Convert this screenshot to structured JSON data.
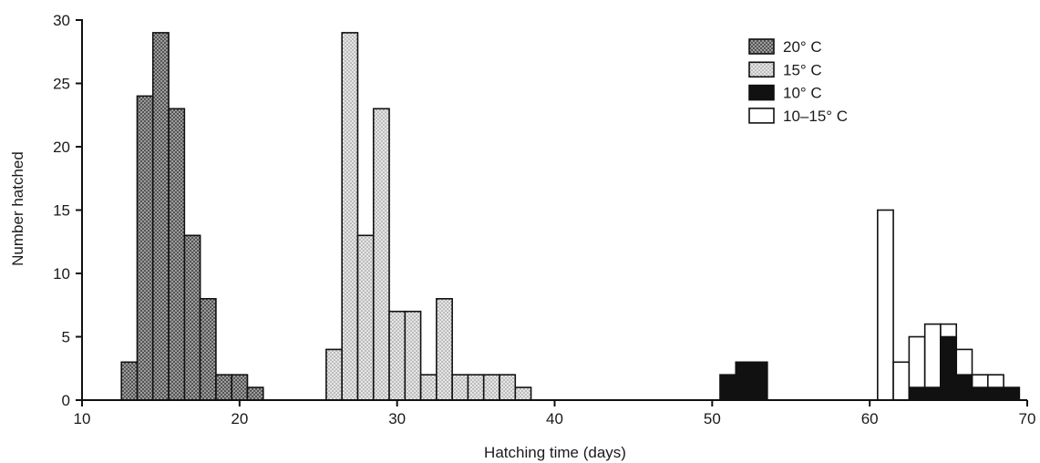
{
  "chart_data": {
    "type": "bar",
    "title": "",
    "xlabel": "Hatching time (days)",
    "ylabel": "Number hatched",
    "xlim": [
      10,
      70
    ],
    "ylim": [
      0,
      30
    ],
    "x_ticks": [
      "10",
      "20",
      "30",
      "40",
      "50",
      "60",
      "70"
    ],
    "y_ticks": [
      "0",
      "5",
      "10",
      "15",
      "20",
      "25",
      "30"
    ],
    "grid": false,
    "legend_position": "top-right",
    "series": [
      {
        "name": "20° C",
        "pattern": "dark-dotted",
        "x": [
          13,
          14,
          15,
          16,
          17,
          18,
          19,
          20,
          21
        ],
        "values": [
          3,
          24,
          29,
          23,
          13,
          8,
          2,
          2,
          1
        ]
      },
      {
        "name": "15° C",
        "pattern": "light-dotted",
        "x": [
          26,
          27,
          28,
          29,
          30,
          31,
          32,
          33,
          34,
          35,
          36,
          37,
          38
        ],
        "values": [
          4,
          29,
          13,
          23,
          7,
          7,
          2,
          8,
          2,
          2,
          2,
          2,
          1
        ]
      },
      {
        "name": "10° C",
        "pattern": "solid-black",
        "x": [
          51,
          52,
          53,
          63,
          64,
          65,
          66,
          67,
          68,
          69
        ],
        "values": [
          2,
          3,
          3,
          1,
          1,
          5,
          2,
          1,
          1,
          1
        ]
      },
      {
        "name": "10–15° C",
        "pattern": "white",
        "x": [
          61,
          62,
          63,
          64,
          65,
          66,
          67,
          68
        ],
        "values": [
          15,
          3,
          5,
          6,
          6,
          4,
          2,
          2
        ]
      }
    ],
    "colors": {
      "ink": "#111111",
      "dark_fill": "#6b6b6b",
      "light_fill": "#d2d2d2",
      "white_fill": "#ffffff"
    }
  }
}
